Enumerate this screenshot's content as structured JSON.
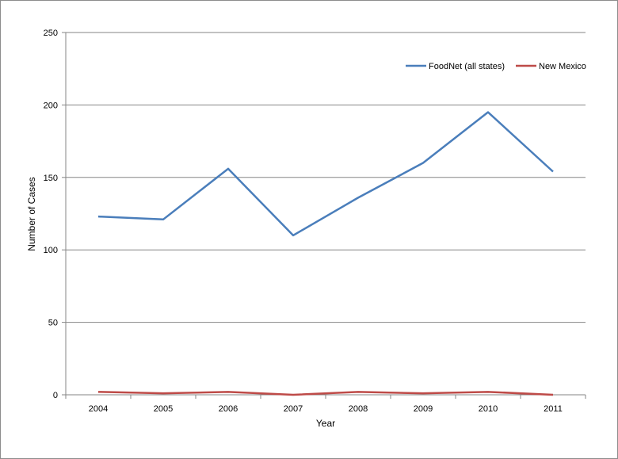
{
  "chart_data": {
    "type": "line",
    "title": "",
    "xlabel": "Year",
    "ylabel": "Number of Cases",
    "x": [
      "2004",
      "2005",
      "2006",
      "2007",
      "2008",
      "2009",
      "2010",
      "2011"
    ],
    "ylim": [
      0,
      250
    ],
    "yticks": [
      "0",
      "50",
      "100",
      "150",
      "200",
      "250"
    ],
    "grid": "horizontal",
    "legend": "top-right",
    "series": [
      {
        "name": "FoodNet (all states)",
        "color": "#4a7ebb",
        "values": [
          123,
          121,
          156,
          110,
          136,
          160,
          195,
          154
        ]
      },
      {
        "name": "New Mexico",
        "color": "#be4b48",
        "values": [
          2,
          1,
          2,
          0,
          2,
          1,
          2,
          0
        ]
      }
    ]
  }
}
